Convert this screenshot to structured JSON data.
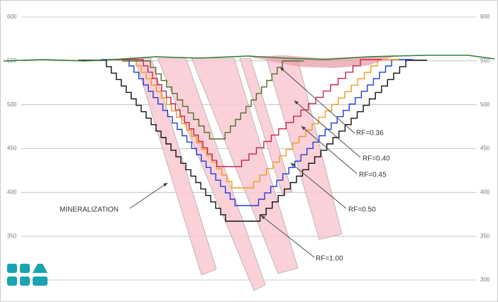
{
  "elevation_ticks": [
    600,
    550,
    500,
    450,
    400,
    350,
    300
  ],
  "labels": {
    "rf036": "RF=0.36",
    "rf040": "RF=0.40",
    "rf045": "RF=0.45",
    "rf050": "RF=0.50",
    "rf100": "RF=1.00",
    "mineralization": "MINERALIZATION"
  }
}
